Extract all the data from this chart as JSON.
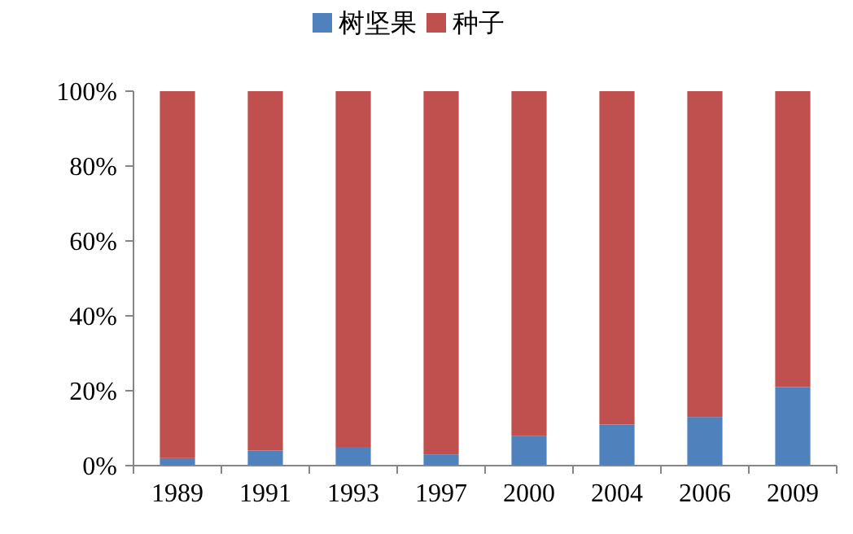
{
  "chart_data": {
    "type": "bar",
    "stacked": true,
    "categories": [
      "1989",
      "1991",
      "1993",
      "1997",
      "2000",
      "2004",
      "2006",
      "2009"
    ],
    "series": [
      {
        "name": "树坚果",
        "color": "#4f81bd",
        "values": [
          2,
          4,
          5,
          3,
          8,
          11,
          13,
          21
        ]
      },
      {
        "name": "种子",
        "color": "#c0504d",
        "values": [
          98,
          96,
          95,
          97,
          92,
          89,
          87,
          79
        ]
      }
    ],
    "ylim": [
      0,
      100
    ],
    "yticks": [
      {
        "value": 0,
        "label": "0%"
      },
      {
        "value": 20,
        "label": "20%"
      },
      {
        "value": 40,
        "label": "40%"
      },
      {
        "value": 60,
        "label": "60%"
      },
      {
        "value": 80,
        "label": "80%"
      },
      {
        "value": 100,
        "label": "100%"
      }
    ],
    "grid": false,
    "legend": "top"
  }
}
